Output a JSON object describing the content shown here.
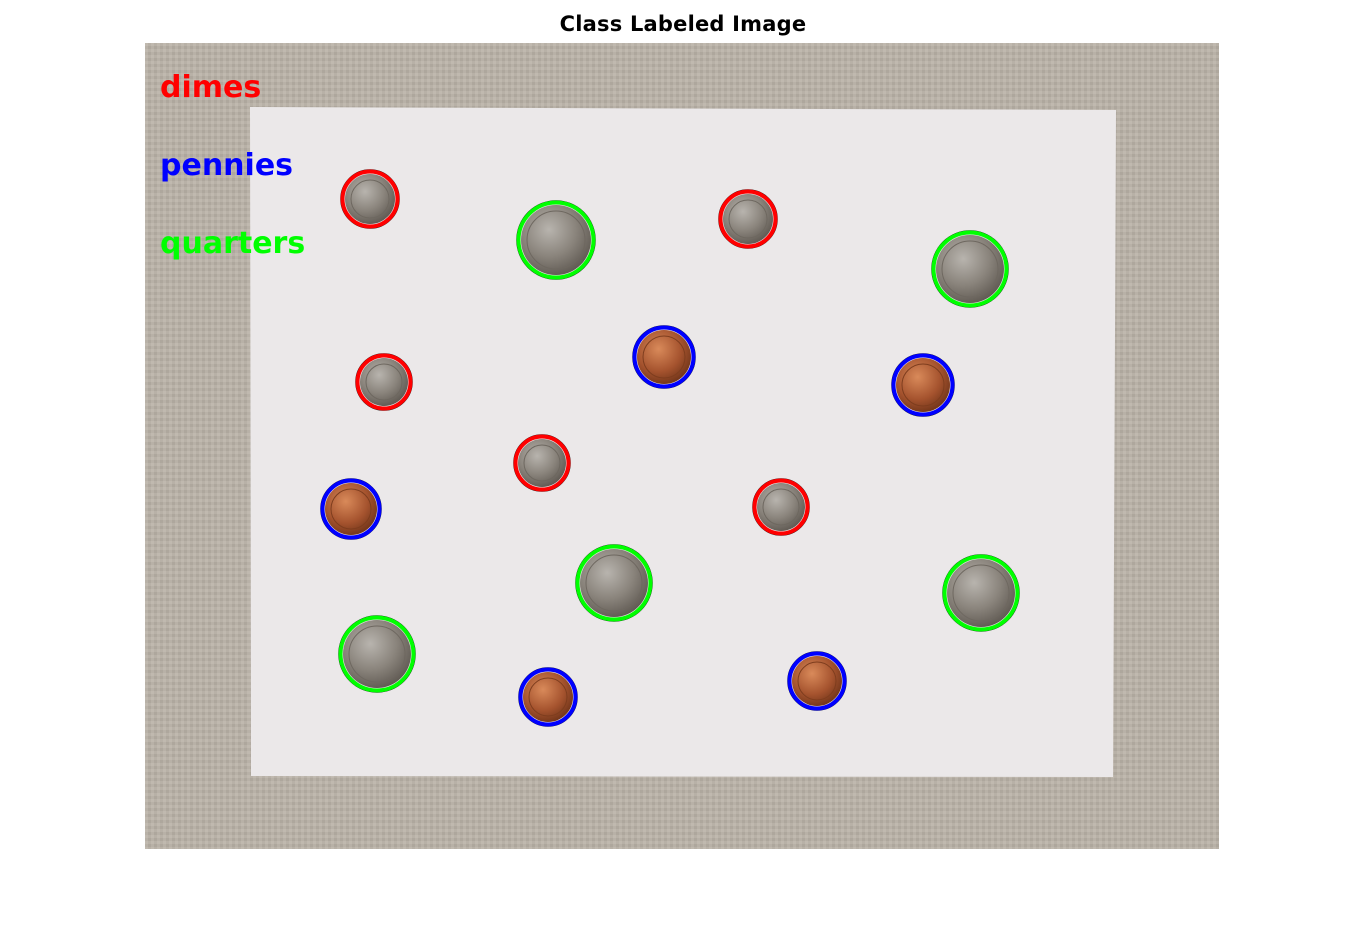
{
  "figure": {
    "title": "Class Labeled Image"
  },
  "legend": [
    {
      "label": "dimes",
      "color": "#ff0000"
    },
    {
      "label": "pennies",
      "color": "#0000ff"
    },
    {
      "label": "quarters",
      "color": "#00ff00"
    }
  ],
  "coin_labels": [
    "dimes",
    "quarters",
    "dimes",
    "quarters",
    "dimes",
    "pennies",
    "pennies",
    "dimes",
    "pennies",
    "dimes",
    "quarters",
    "quarters",
    "quarters",
    "pennies",
    "pennies"
  ],
  "colors": {
    "background": "#ffffff",
    "cloth": "#b8b0a6",
    "paper": "#ece9ea",
    "dimes": "#ff0000",
    "pennies": "#0000ff",
    "quarters": "#00ff00"
  }
}
